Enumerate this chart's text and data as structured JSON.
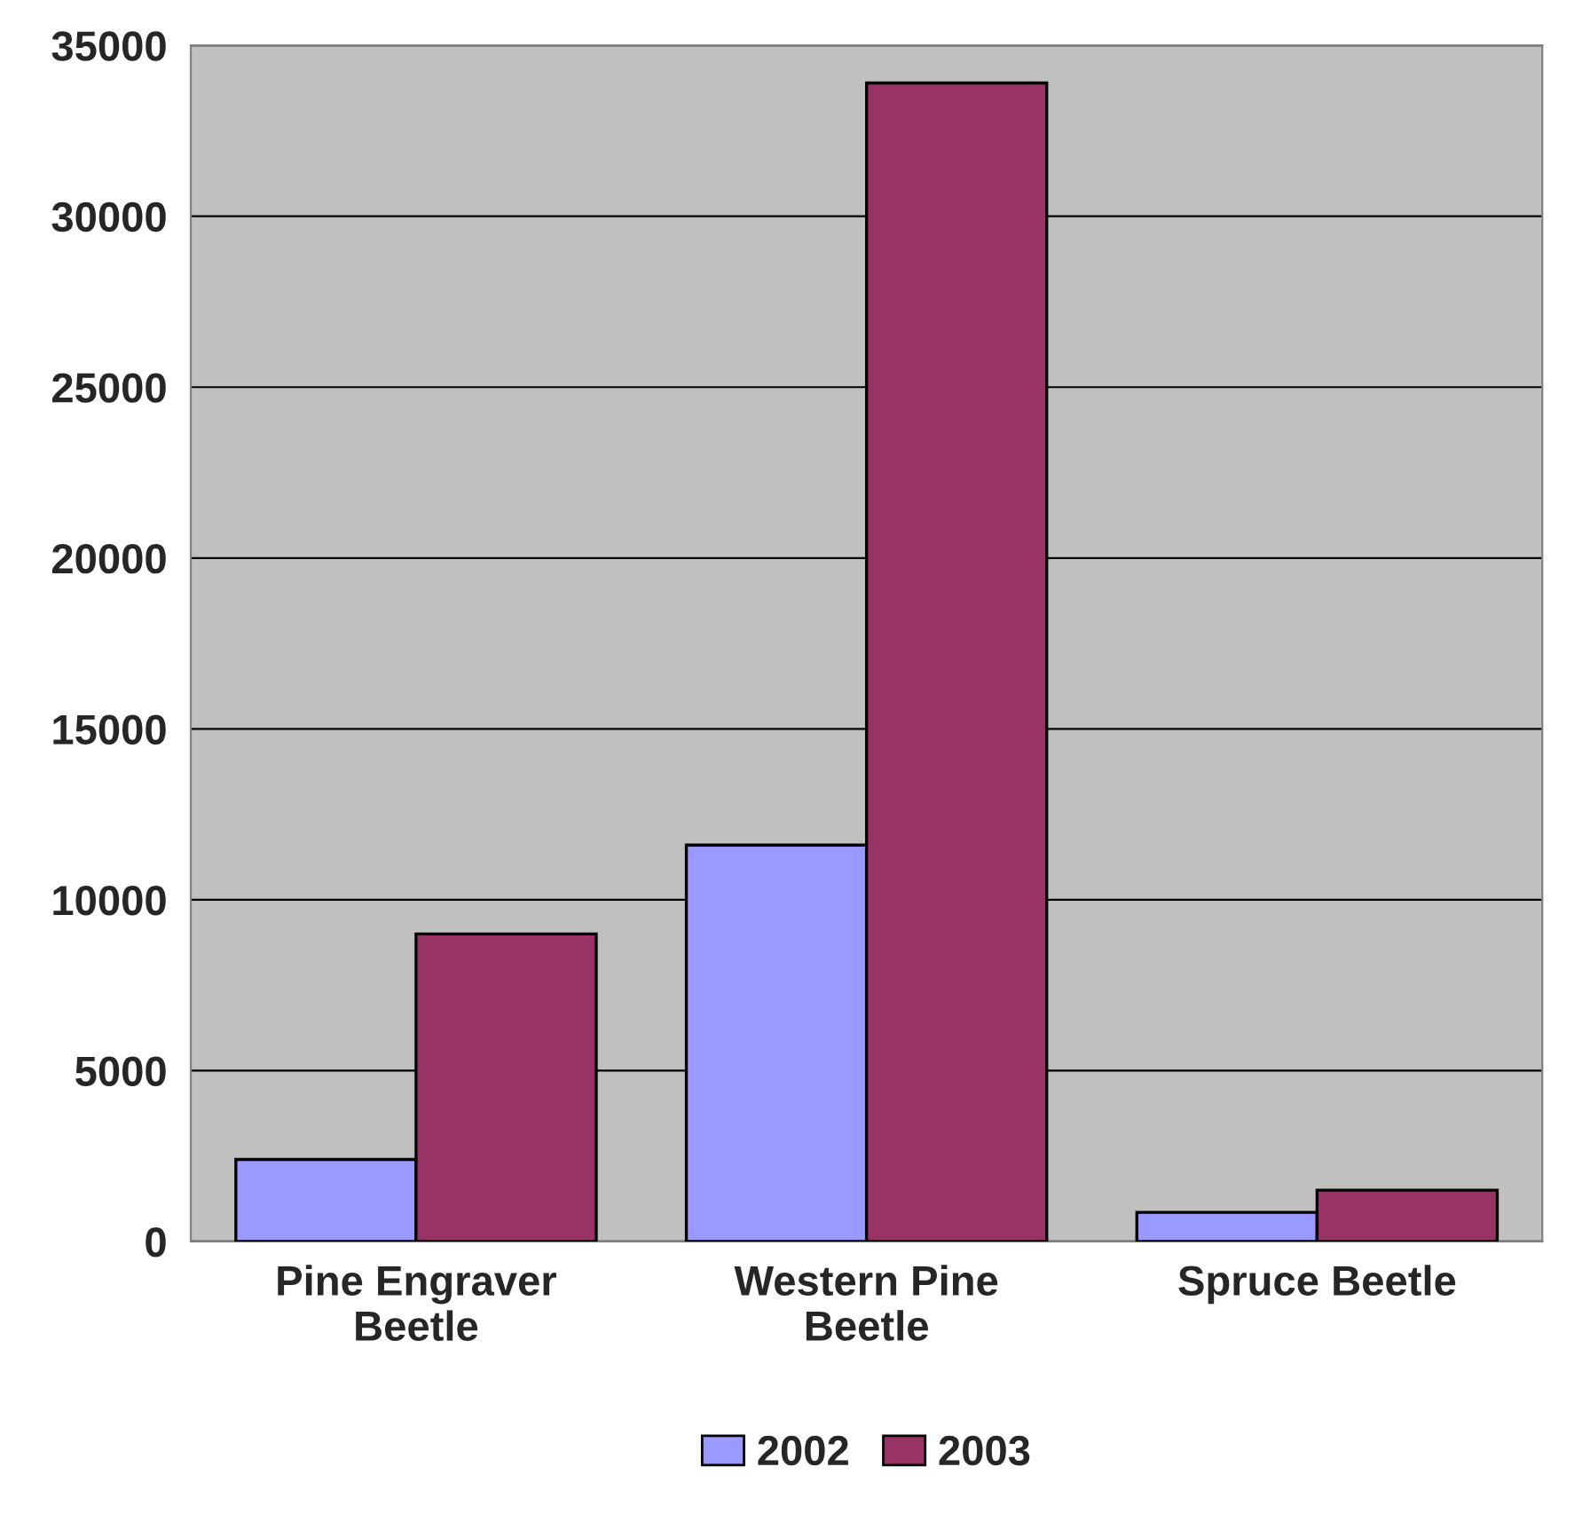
{
  "chart_data": {
    "type": "bar",
    "categories": [
      "Pine Engraver\nBeetle",
      "Western Pine\nBeetle",
      "Spruce Beetle"
    ],
    "series": [
      {
        "name": "2002",
        "color": "#9999ff",
        "values": [
          2400,
          11600,
          850
        ]
      },
      {
        "name": "2003",
        "color": "#993366",
        "values": [
          9000,
          33900,
          1500
        ]
      }
    ],
    "ylim": [
      0,
      35000
    ],
    "yticks": [
      0,
      5000,
      10000,
      15000,
      20000,
      25000,
      30000,
      35000
    ],
    "grid": "y",
    "legend": "bottom"
  }
}
